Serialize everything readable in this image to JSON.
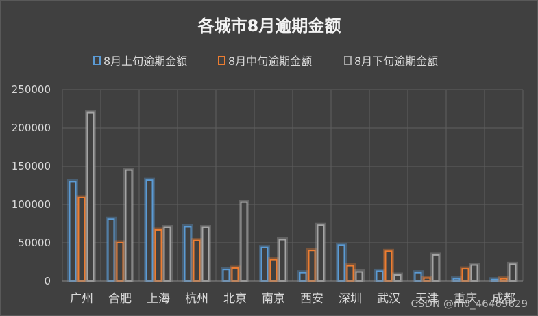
{
  "chart_data": {
    "type": "bar",
    "title": "各城市8月逾期金额",
    "categories": [
      "广州",
      "合肥",
      "上海",
      "杭州",
      "北京",
      "南京",
      "西安",
      "深圳",
      "武汉",
      "天津",
      "重庆",
      "成都"
    ],
    "series": [
      {
        "name": "8月上旬逾期金额",
        "color": "#5b9bd5",
        "values": [
          130000,
          81000,
          132000,
          71000,
          15000,
          44000,
          11000,
          47000,
          13000,
          11000,
          3000,
          2000
        ]
      },
      {
        "name": "8月中旬逾期金额",
        "color": "#ed7d31",
        "values": [
          109000,
          50000,
          67000,
          53000,
          17000,
          28000,
          40000,
          20000,
          39000,
          4000,
          16000,
          3000
        ]
      },
      {
        "name": "8月下旬逾期金额",
        "color": "#a5a5a5",
        "values": [
          220000,
          145000,
          70000,
          70000,
          103000,
          54000,
          73000,
          12000,
          8000,
          34000,
          21000,
          22000
        ]
      }
    ],
    "ylim": [
      0,
      250000
    ],
    "yticks": [
      0,
      50000,
      100000,
      150000,
      200000,
      250000
    ],
    "grid": true,
    "legend_position": "top"
  },
  "watermark": "CSDN @m0_46469629"
}
